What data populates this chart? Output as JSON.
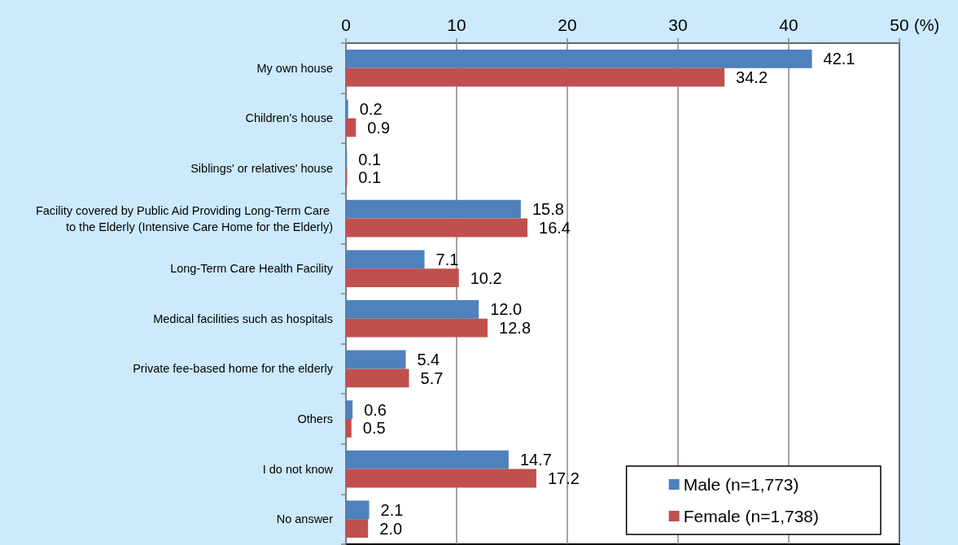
{
  "chart_data": {
    "type": "bar",
    "orientation": "horizontal",
    "xlabel": "(%)",
    "categories": [
      "My own house",
      "Children's house",
      "Siblings' or relatives' house",
      "Facility covered by Public Aid Providing Long-Term Care to the Elderly (Intensive Care Home for the Elderly)",
      "Long-Term Care Health Facility",
      "Medical facilities such as hospitals",
      "Private fee-based home for the elderly",
      "Others",
      "I do not know",
      "No answer"
    ],
    "series": [
      {
        "name": "Male (n=1,773)",
        "color": "#4f81bd",
        "values": [
          42.1,
          0.2,
          0.1,
          15.8,
          7.1,
          12.0,
          5.4,
          0.6,
          14.7,
          2.1
        ],
        "value_labels": [
          "42.1",
          "0.2",
          "0.1",
          "15.8",
          "7.1",
          "12.0",
          "5.4",
          "0.6",
          "14.7",
          "2.1"
        ]
      },
      {
        "name": "Female (n=1,738)",
        "color": "#c0504d",
        "values": [
          34.2,
          0.9,
          0.1,
          16.4,
          10.2,
          12.8,
          5.7,
          0.5,
          17.2,
          2.0
        ],
        "value_labels": [
          "34.2",
          "0.9",
          "0.1",
          "16.4",
          "10.2",
          "12.8",
          "5.7",
          "0.5",
          "17.2",
          "2.0"
        ]
      }
    ],
    "xlim": [
      0,
      50
    ],
    "xticks": [
      0,
      10,
      20,
      30,
      40,
      50
    ],
    "grid": "x",
    "legend": "bottom right"
  }
}
